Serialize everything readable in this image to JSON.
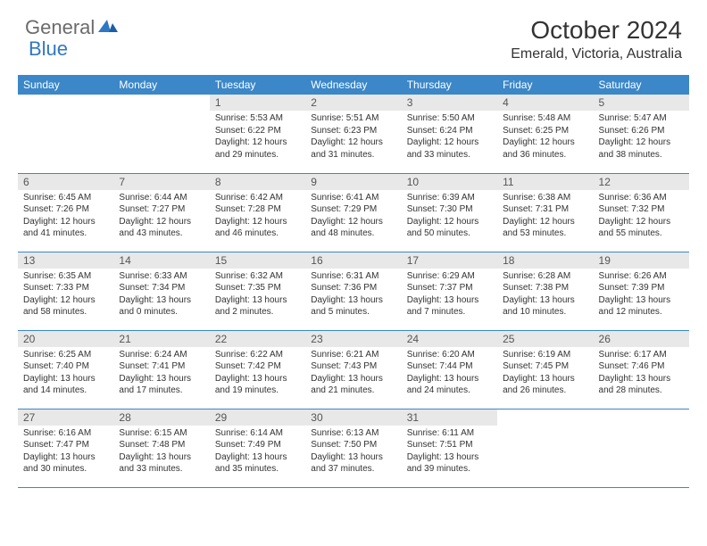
{
  "logo": {
    "part1": "General",
    "part2": "Blue"
  },
  "title": "October 2024",
  "location": "Emerald, Victoria, Australia",
  "styling": {
    "header_bg": "#3b87c8",
    "header_fg": "#ffffff",
    "daynum_bg": "#e8e8e8",
    "daynum_fg": "#555555",
    "body_bg": "#ffffff",
    "border_color": "#3b87c8",
    "title_fontsize": 28,
    "location_fontsize": 16,
    "header_fontsize": 12,
    "daynum_fontsize": 12,
    "content_fontsize": 10,
    "logo_gray": "#6b6b6b",
    "logo_blue": "#2f78c4"
  },
  "day_headers": [
    "Sunday",
    "Monday",
    "Tuesday",
    "Wednesday",
    "Thursday",
    "Friday",
    "Saturday"
  ],
  "weeks": [
    [
      null,
      null,
      {
        "n": "1",
        "sr": "5:53 AM",
        "ss": "6:22 PM",
        "dl": "12 hours and 29 minutes."
      },
      {
        "n": "2",
        "sr": "5:51 AM",
        "ss": "6:23 PM",
        "dl": "12 hours and 31 minutes."
      },
      {
        "n": "3",
        "sr": "5:50 AM",
        "ss": "6:24 PM",
        "dl": "12 hours and 33 minutes."
      },
      {
        "n": "4",
        "sr": "5:48 AM",
        "ss": "6:25 PM",
        "dl": "12 hours and 36 minutes."
      },
      {
        "n": "5",
        "sr": "5:47 AM",
        "ss": "6:26 PM",
        "dl": "12 hours and 38 minutes."
      }
    ],
    [
      {
        "n": "6",
        "sr": "6:45 AM",
        "ss": "7:26 PM",
        "dl": "12 hours and 41 minutes."
      },
      {
        "n": "7",
        "sr": "6:44 AM",
        "ss": "7:27 PM",
        "dl": "12 hours and 43 minutes."
      },
      {
        "n": "8",
        "sr": "6:42 AM",
        "ss": "7:28 PM",
        "dl": "12 hours and 46 minutes."
      },
      {
        "n": "9",
        "sr": "6:41 AM",
        "ss": "7:29 PM",
        "dl": "12 hours and 48 minutes."
      },
      {
        "n": "10",
        "sr": "6:39 AM",
        "ss": "7:30 PM",
        "dl": "12 hours and 50 minutes."
      },
      {
        "n": "11",
        "sr": "6:38 AM",
        "ss": "7:31 PM",
        "dl": "12 hours and 53 minutes."
      },
      {
        "n": "12",
        "sr": "6:36 AM",
        "ss": "7:32 PM",
        "dl": "12 hours and 55 minutes."
      }
    ],
    [
      {
        "n": "13",
        "sr": "6:35 AM",
        "ss": "7:33 PM",
        "dl": "12 hours and 58 minutes."
      },
      {
        "n": "14",
        "sr": "6:33 AM",
        "ss": "7:34 PM",
        "dl": "13 hours and 0 minutes."
      },
      {
        "n": "15",
        "sr": "6:32 AM",
        "ss": "7:35 PM",
        "dl": "13 hours and 2 minutes."
      },
      {
        "n": "16",
        "sr": "6:31 AM",
        "ss": "7:36 PM",
        "dl": "13 hours and 5 minutes."
      },
      {
        "n": "17",
        "sr": "6:29 AM",
        "ss": "7:37 PM",
        "dl": "13 hours and 7 minutes."
      },
      {
        "n": "18",
        "sr": "6:28 AM",
        "ss": "7:38 PM",
        "dl": "13 hours and 10 minutes."
      },
      {
        "n": "19",
        "sr": "6:26 AM",
        "ss": "7:39 PM",
        "dl": "13 hours and 12 minutes."
      }
    ],
    [
      {
        "n": "20",
        "sr": "6:25 AM",
        "ss": "7:40 PM",
        "dl": "13 hours and 14 minutes."
      },
      {
        "n": "21",
        "sr": "6:24 AM",
        "ss": "7:41 PM",
        "dl": "13 hours and 17 minutes."
      },
      {
        "n": "22",
        "sr": "6:22 AM",
        "ss": "7:42 PM",
        "dl": "13 hours and 19 minutes."
      },
      {
        "n": "23",
        "sr": "6:21 AM",
        "ss": "7:43 PM",
        "dl": "13 hours and 21 minutes."
      },
      {
        "n": "24",
        "sr": "6:20 AM",
        "ss": "7:44 PM",
        "dl": "13 hours and 24 minutes."
      },
      {
        "n": "25",
        "sr": "6:19 AM",
        "ss": "7:45 PM",
        "dl": "13 hours and 26 minutes."
      },
      {
        "n": "26",
        "sr": "6:17 AM",
        "ss": "7:46 PM",
        "dl": "13 hours and 28 minutes."
      }
    ],
    [
      {
        "n": "27",
        "sr": "6:16 AM",
        "ss": "7:47 PM",
        "dl": "13 hours and 30 minutes."
      },
      {
        "n": "28",
        "sr": "6:15 AM",
        "ss": "7:48 PM",
        "dl": "13 hours and 33 minutes."
      },
      {
        "n": "29",
        "sr": "6:14 AM",
        "ss": "7:49 PM",
        "dl": "13 hours and 35 minutes."
      },
      {
        "n": "30",
        "sr": "6:13 AM",
        "ss": "7:50 PM",
        "dl": "13 hours and 37 minutes."
      },
      {
        "n": "31",
        "sr": "6:11 AM",
        "ss": "7:51 PM",
        "dl": "13 hours and 39 minutes."
      },
      null,
      null
    ]
  ],
  "labels": {
    "sunrise": "Sunrise:",
    "sunset": "Sunset:",
    "daylight": "Daylight:"
  }
}
